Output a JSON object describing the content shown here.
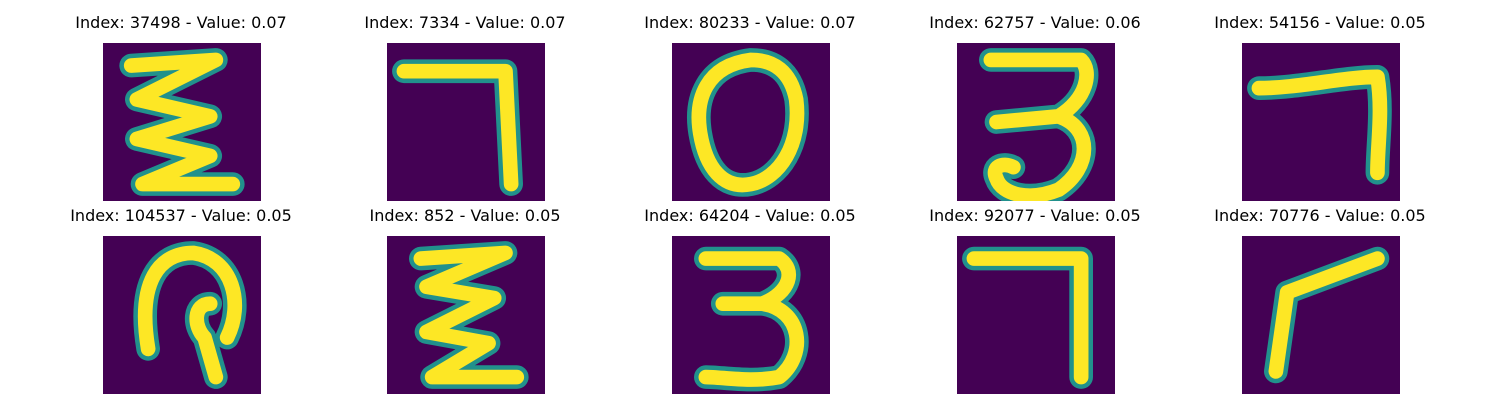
{
  "palette": {
    "background": "#440154",
    "mid": "#21918c",
    "high": "#fde725"
  },
  "panels": [
    {
      "title": "Index: 37498 - Value: 0.07",
      "glyph": "zigzag-3"
    },
    {
      "title": "Index: 7334 - Value: 0.07",
      "glyph": "seven"
    },
    {
      "title": "Index: 80233 - Value: 0.07",
      "glyph": "zero"
    },
    {
      "title": "Index: 62757 - Value: 0.06",
      "glyph": "three"
    },
    {
      "title": "Index: 54156 - Value: 0.05",
      "glyph": "seven-curved"
    },
    {
      "title": "Index: 104537 - Value: 0.05",
      "glyph": "loop"
    },
    {
      "title": "Index: 852 - Value: 0.05",
      "glyph": "zigzag-3b"
    },
    {
      "title": "Index: 64204 - Value: 0.05",
      "glyph": "three-b"
    },
    {
      "title": "Index: 92077 - Value: 0.05",
      "glyph": "seven-straight"
    },
    {
      "title": "Index: 70776 - Value: 0.05",
      "glyph": "seven-angled"
    }
  ]
}
